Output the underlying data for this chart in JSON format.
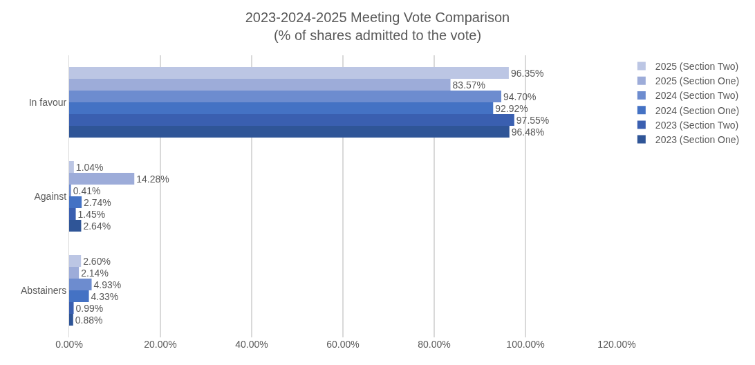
{
  "chart_data": {
    "type": "bar",
    "orientation": "horizontal",
    "title": "2023-2024-2025 Meeting Vote Comparison\n(% of shares admitted to the vote)",
    "categories": [
      "In favour",
      "Against",
      "Abstainers"
    ],
    "series": [
      {
        "name": "2025 (Section Two)",
        "color": "#bcc6e4",
        "values": [
          96.35,
          1.04,
          2.6
        ],
        "value_labels": [
          "96.35%",
          "1.04%",
          "2.60%"
        ]
      },
      {
        "name": "2025 (Section One)",
        "color": "#9dacd9",
        "values": [
          83.57,
          14.28,
          2.14
        ],
        "value_labels": [
          "83.57%",
          "14.28%",
          "2.14%"
        ]
      },
      {
        "name": "2024 (Section Two)",
        "color": "#6d8ccf",
        "values": [
          94.7,
          0.41,
          4.93
        ],
        "value_labels": [
          "94.70%",
          "0.41%",
          "4.93%"
        ]
      },
      {
        "name": "2024 (Section One)",
        "color": "#4472c4",
        "values": [
          92.92,
          2.74,
          4.33
        ],
        "value_labels": [
          "92.92%",
          "2.74%",
          "4.33%"
        ]
      },
      {
        "name": "2023 (Section Two)",
        "color": "#3a5fb0",
        "values": [
          97.55,
          1.45,
          0.99
        ],
        "value_labels": [
          "97.55%",
          "1.45%",
          "0.99%"
        ]
      },
      {
        "name": "2023 (Section One)",
        "color": "#2f5597",
        "values": [
          96.48,
          2.64,
          0.88
        ],
        "value_labels": [
          "96.48%",
          "2.64%",
          "0.88%"
        ]
      }
    ],
    "xlim": [
      0,
      120
    ],
    "xticks": [
      {
        "value": 0,
        "label": "0.00%"
      },
      {
        "value": 20,
        "label": "20.00%"
      },
      {
        "value": 40,
        "label": "40.00%"
      },
      {
        "value": 60,
        "label": "60.00%"
      },
      {
        "value": 80,
        "label": "80.00%"
      },
      {
        "value": 100,
        "label": "100.00%"
      },
      {
        "value": 120,
        "label": "120.00%"
      }
    ],
    "grid": "x",
    "legend": "right"
  }
}
